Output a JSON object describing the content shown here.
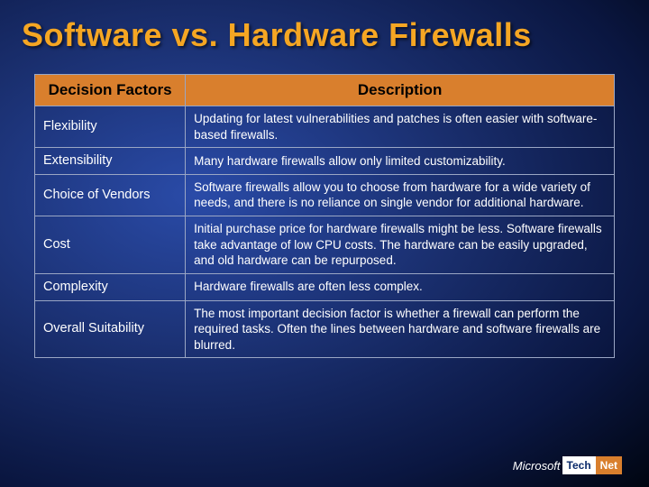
{
  "title": "Software vs. Hardware Firewalls",
  "table": {
    "headers": {
      "factor": "Decision Factors",
      "description": "Description"
    },
    "header_bg": "#d97f2d",
    "border_color": "#9aa6c4",
    "rows": [
      {
        "factor": "Flexibility",
        "description": "Updating for latest vulnerabilities and patches is often easier with software-based firewalls."
      },
      {
        "factor": "Extensibility",
        "description": "Many hardware firewalls allow only limited customizability."
      },
      {
        "factor": "Choice of Vendors",
        "description": "Software firewalls allow you to choose from hardware for a wide variety of needs, and there is no reliance on single vendor for additional hardware."
      },
      {
        "factor": "Cost",
        "description": "Initial purchase price for hardware firewalls might be less. Software firewalls take advantage of low CPU costs. The hardware can be easily upgraded, and old hardware can be repurposed."
      },
      {
        "factor": "Complexity",
        "description": "Hardware firewalls are often less complex."
      },
      {
        "factor": "Overall Suitability",
        "description": "The most important decision factor is whether a firewall can perform the required tasks. Often the lines between hardware and software firewalls are blurred."
      }
    ]
  },
  "footer": {
    "brand": "Microsoft",
    "logo_tech": "Tech",
    "logo_net": "Net"
  },
  "colors": {
    "title_color": "#f5a623",
    "text_color": "#ffffff",
    "accent": "#d97f2d"
  }
}
